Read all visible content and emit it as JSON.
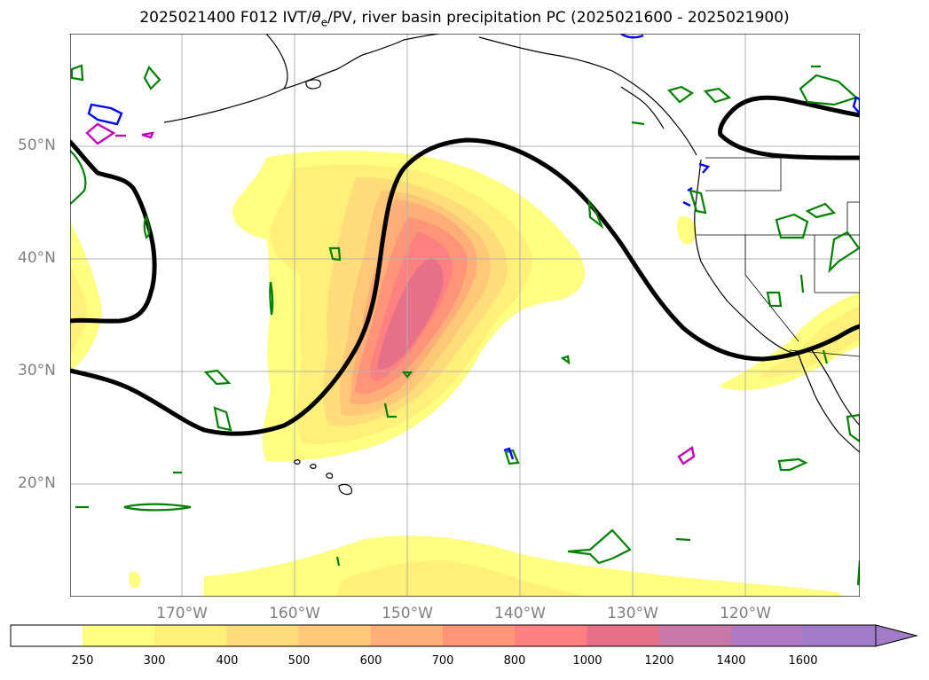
{
  "title": {
    "prefix": "2025021400 F012 IVT/",
    "theta": "θ",
    "theta_sub": "e",
    "suffix": "/PV, river basin precipitation PC (2025021600 - 2025021900)"
  },
  "map": {
    "lat_labels": [
      "50°N",
      "40°N",
      "30°N",
      "20°N"
    ],
    "lon_labels": [
      "170°W",
      "160°W",
      "150°W",
      "140°W",
      "130°W",
      "120°W"
    ],
    "gridlines": true,
    "colors": {
      "pv_contour": "#000000",
      "theta_e_green": "#008000",
      "blue_contour": "#0000ff",
      "magenta_contour": "#c000c0",
      "grid": "#b0b0b0"
    }
  },
  "colorbar": {
    "labels": [
      "250",
      "300",
      "400",
      "500",
      "600",
      "700",
      "800",
      "1000",
      "1200",
      "1400",
      "1600"
    ],
    "colors": [
      "#ffffff",
      "#ffff80",
      "#fff07a",
      "#ffdd78",
      "#ffc878",
      "#ffae78",
      "#ff9478",
      "#ff8080",
      "#e67088",
      "#c878a8",
      "#b078c0",
      "#a07cc8"
    ],
    "extend": "max"
  }
}
